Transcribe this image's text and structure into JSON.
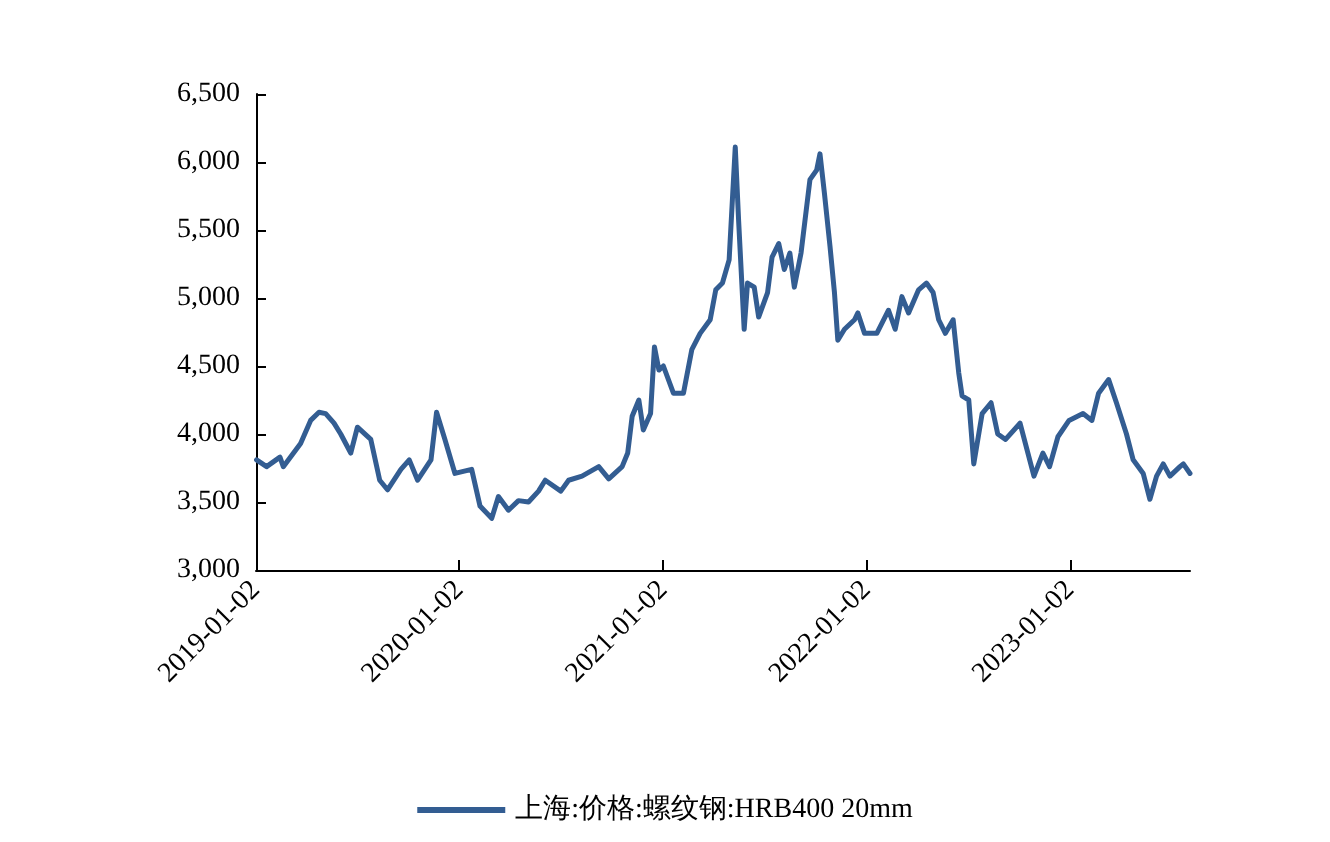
{
  "chart_data": {
    "type": "line",
    "x": [
      "2019-01-03",
      "2019-01-21",
      "2019-02-14",
      "2019-02-20",
      "2019-03-23",
      "2019-04-10",
      "2019-04-25",
      "2019-05-07",
      "2019-05-22",
      "2019-06-03",
      "2019-06-21",
      "2019-07-03",
      "2019-07-27",
      "2019-08-12",
      "2019-08-26",
      "2019-09-19",
      "2019-10-04",
      "2019-10-19",
      "2019-11-12",
      "2019-11-22",
      "2019-12-07",
      "2019-12-25",
      "2020-01-24",
      "2020-02-08",
      "2020-02-29",
      "2020-03-12",
      "2020-03-30",
      "2020-04-17",
      "2020-05-05",
      "2020-05-23",
      "2020-06-04",
      "2020-07-02",
      "2020-07-16",
      "2020-08-09",
      "2020-09-08",
      "2020-09-26",
      "2020-10-20",
      "2020-10-30",
      "2020-11-07",
      "2020-11-19",
      "2020-11-27",
      "2020-12-10",
      "2020-12-17",
      "2020-12-25",
      "2021-01-02",
      "2021-01-20",
      "2021-02-07",
      "2021-02-22",
      "2021-03-09",
      "2021-03-27",
      "2021-04-06",
      "2021-04-18",
      "2021-04-30",
      "2021-05-11",
      "2021-05-17",
      "2021-05-27",
      "2021-06-02",
      "2021-06-14",
      "2021-06-22",
      "2021-07-08",
      "2021-07-16",
      "2021-07-28",
      "2021-08-07",
      "2021-08-17",
      "2021-08-25",
      "2021-09-06",
      "2021-09-22",
      "2021-10-04",
      "2021-10-10",
      "2021-10-18",
      "2021-10-28",
      "2021-11-05",
      "2021-11-11",
      "2021-11-23",
      "2021-12-11",
      "2021-12-17",
      "2021-12-29",
      "2022-01-20",
      "2022-02-10",
      "2022-02-22",
      "2022-03-06",
      "2022-03-18",
      "2022-04-05",
      "2022-04-19",
      "2022-05-01",
      "2022-05-11",
      "2022-05-23",
      "2022-06-06",
      "2022-06-16",
      "2022-06-22",
      "2022-07-04",
      "2022-07-13",
      "2022-07-28",
      "2022-08-13",
      "2022-08-25",
      "2022-09-08",
      "2022-10-04",
      "2022-10-29",
      "2022-11-14",
      "2022-11-26",
      "2022-12-11",
      "2022-12-31",
      "2023-01-25",
      "2023-02-10",
      "2023-02-22",
      "2023-03-12",
      "2023-03-26",
      "2023-04-13",
      "2023-04-25",
      "2023-05-13",
      "2023-05-25",
      "2023-06-06",
      "2023-06-18",
      "2023-06-30",
      "2023-07-18",
      "2023-07-24",
      "2023-08-05"
    ],
    "series": [
      {
        "name": "上海:价格:螺纹钢:HRB400 20mm",
        "color": "#335d92",
        "values": [
          3810,
          3760,
          3830,
          3760,
          3930,
          4100,
          4160,
          4150,
          4080,
          4000,
          3860,
          4050,
          3960,
          3660,
          3590,
          3740,
          3810,
          3660,
          3810,
          4160,
          3960,
          3710,
          3740,
          3470,
          3380,
          3540,
          3440,
          3510,
          3500,
          3580,
          3660,
          3580,
          3660,
          3690,
          3760,
          3670,
          3760,
          3860,
          4130,
          4250,
          4030,
          4150,
          4640,
          4470,
          4500,
          4300,
          4300,
          4620,
          4740,
          4840,
          5060,
          5110,
          5280,
          6110,
          5570,
          4770,
          5110,
          5080,
          4860,
          5040,
          5300,
          5400,
          5210,
          5330,
          5080,
          5330,
          5870,
          5940,
          6060,
          5770,
          5380,
          5040,
          4690,
          4770,
          4840,
          4890,
          4740,
          4740,
          4910,
          4770,
          5010,
          4890,
          5060,
          5110,
          5040,
          4840,
          4740,
          4840,
          4450,
          4280,
          4250,
          3780,
          4150,
          4230,
          4000,
          3960,
          4080,
          3690,
          3860,
          3760,
          3980,
          4100,
          4150,
          4100,
          4300,
          4400,
          4230,
          4000,
          3810,
          3710,
          3520,
          3690,
          3780,
          3690,
          3760,
          3780,
          3710
        ]
      }
    ],
    "xlim": [
      "2019-01-02",
      "2023-08-05"
    ],
    "xticks": [
      "2019-01-02",
      "2020-01-02",
      "2021-01-02",
      "2022-01-02",
      "2023-01-02"
    ],
    "ylim": [
      3000,
      6500
    ],
    "yticks": [
      {
        "value": 3000,
        "label": "3,000"
      },
      {
        "value": 3500,
        "label": "3,500"
      },
      {
        "value": 4000,
        "label": "4,000"
      },
      {
        "value": 4500,
        "label": "4,500"
      },
      {
        "value": 5000,
        "label": "5,000"
      },
      {
        "value": 5500,
        "label": "5,500"
      },
      {
        "value": 6000,
        "label": "6,000"
      },
      {
        "value": 6500,
        "label": "6,500"
      }
    ],
    "grid": false,
    "legend": "bottom",
    "marker": "none",
    "line_style": "solid"
  }
}
